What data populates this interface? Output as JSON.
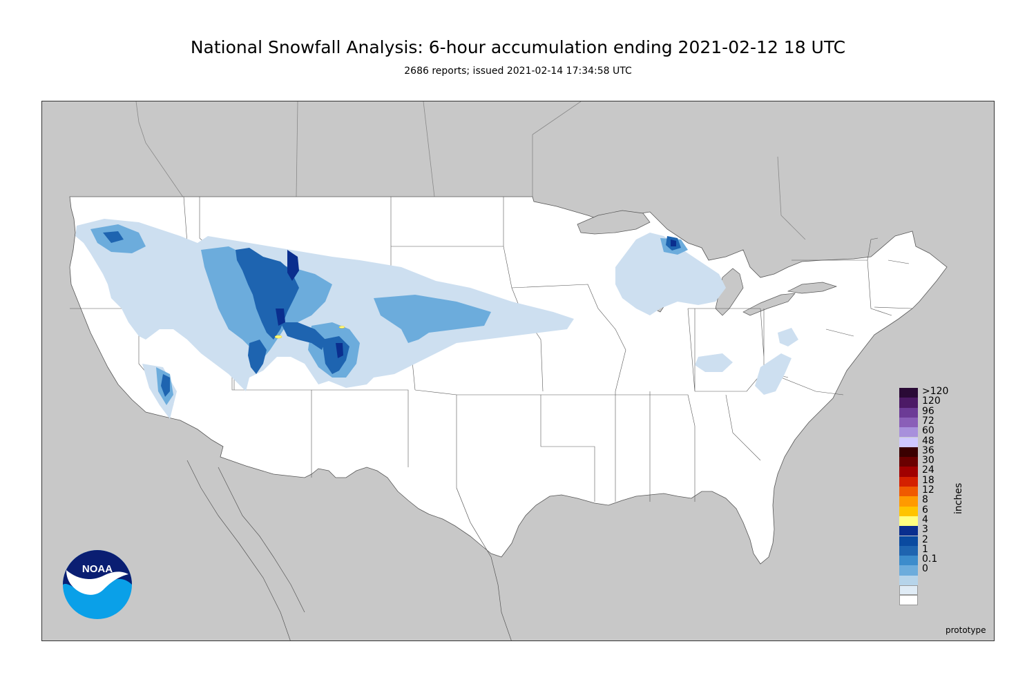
{
  "header": {
    "title": "National Snowfall Analysis: 6-hour accumulation ending 2021-02-12 18 UTC",
    "subtitle": "2686 reports; issued 2021-02-14 17:34:58 UTC"
  },
  "map": {
    "background_color": "#c8c8c8",
    "land_color": "#ffffff",
    "border_color": "#555555"
  },
  "legend": {
    "units": "inches",
    "levels": [
      {
        "label": ">120",
        "color": "#2a0a36"
      },
      {
        "label": "120",
        "color": "#4c1a66"
      },
      {
        "label": "96",
        "color": "#6c3b96"
      },
      {
        "label": "72",
        "color": "#8a5fb8"
      },
      {
        "label": "60",
        "color": "#a890dc"
      },
      {
        "label": "48",
        "color": "#cfc8ff"
      },
      {
        "label": "36",
        "color": "#3a0000"
      },
      {
        "label": "30",
        "color": "#6a0000"
      },
      {
        "label": "24",
        "color": "#a00000"
      },
      {
        "label": "18",
        "color": "#d42000"
      },
      {
        "label": "12",
        "color": "#f05a00"
      },
      {
        "label": "8",
        "color": "#ff9a00"
      },
      {
        "label": "6",
        "color": "#ffc400"
      },
      {
        "label": "4",
        "color": "#ffff80"
      },
      {
        "label": "3",
        "color": "#0a2e8e"
      },
      {
        "label": "2",
        "color": "#0a4aa0"
      },
      {
        "label": "1",
        "color": "#1e64b0"
      },
      {
        "label": "0.1",
        "color": "#3c8ccc"
      },
      {
        "label": "0",
        "color": "#6cacdc"
      },
      {
        "label": "",
        "color": "#b6d4ea"
      },
      {
        "label": "",
        "color": "#e0ecf6"
      },
      {
        "label": "",
        "color": "#ffffff"
      }
    ]
  },
  "footer": {
    "note": "prototype"
  },
  "logo": {
    "text": "NOAA"
  }
}
